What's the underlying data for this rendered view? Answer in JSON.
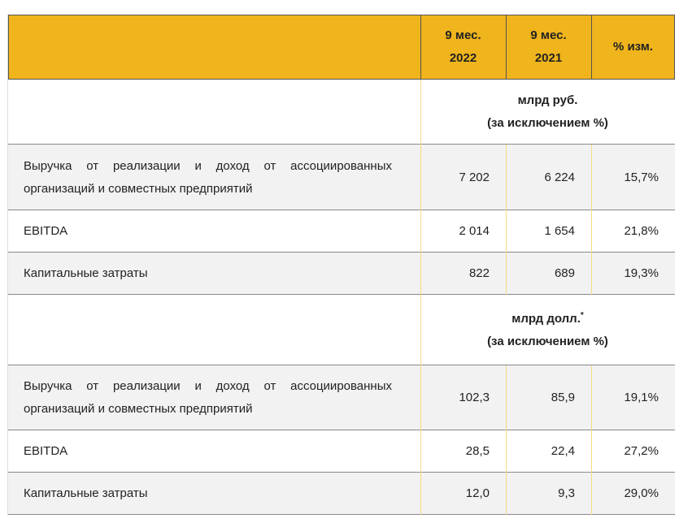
{
  "header": {
    "columns": [
      {
        "lines": [
          "9 мес.",
          "2022"
        ]
      },
      {
        "lines": [
          "9 мес.",
          "2021"
        ]
      },
      {
        "lines": [
          "% изм."
        ]
      }
    ]
  },
  "sections": [
    {
      "unit": {
        "lines": [
          "млрд руб.",
          "(за исключением %)"
        ]
      },
      "rows": [
        {
          "label": "Выручка от реализации и доход от ассоциированных организаций и совместных предприятий",
          "values": [
            "7 202",
            "6 224",
            "15,7%"
          ]
        },
        {
          "label": "EBITDA",
          "values": [
            "2 014",
            "1 654",
            "21,8%"
          ]
        },
        {
          "label": "Капитальные затраты",
          "values": [
            "822",
            "689",
            "19,3%"
          ]
        }
      ]
    },
    {
      "unit": {
        "lines": [
          "млрд долл.",
          "(за исключением %)"
        ],
        "note_mark": "*"
      },
      "rows": [
        {
          "label": "Выручка от реализации и доход от ассоциированных организаций и совместных предприятий",
          "values": [
            "102,3",
            "85,9",
            "19,1%"
          ]
        },
        {
          "label": "EBITDA",
          "values": [
            "28,5",
            "22,4",
            "27,2%"
          ]
        },
        {
          "label": "Капитальные затраты",
          "values": [
            "12,0",
            "9,3",
            "29,0%"
          ]
        }
      ]
    }
  ]
}
